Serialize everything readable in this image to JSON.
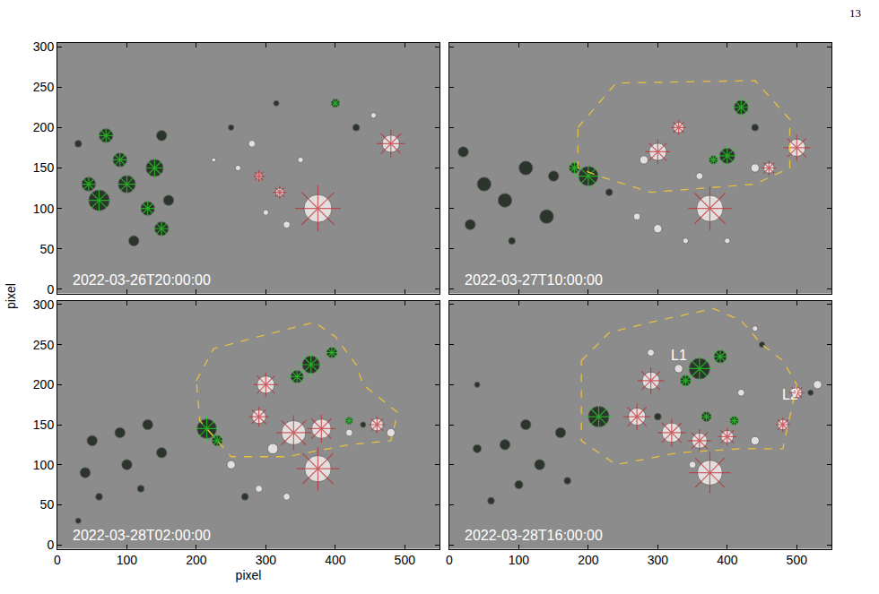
{
  "page_number": "13",
  "ylabel": "pixel",
  "chart_data": [
    {
      "type": "scatter",
      "title": "2022-03-26T20:00:00",
      "xlim": [
        0,
        550
      ],
      "ylim": [
        -5,
        305
      ],
      "xticks": [
        0,
        100,
        200,
        300,
        400,
        500
      ],
      "yticks": [
        0,
        50,
        100,
        150,
        200,
        250,
        300
      ],
      "grid": false,
      "tick_labels": "y",
      "series": [
        {
          "type": "scatter",
          "marker": "circle",
          "color": "#1c261c",
          "x": [
            70,
            60,
            100,
            140,
            150,
            130,
            150,
            110,
            45,
            90,
            160,
            30,
            400,
            430,
            250,
            315
          ],
          "y": [
            190,
            110,
            130,
            150,
            190,
            100,
            75,
            60,
            130,
            160,
            110,
            180,
            230,
            200,
            200,
            230
          ],
          "size": [
            20,
            30,
            25,
            25,
            15,
            20,
            20,
            15,
            20,
            20,
            15,
            10,
            12,
            10,
            8,
            8
          ]
        },
        {
          "type": "scatter",
          "marker": "asterisk",
          "color": "#22dd22",
          "x": [
            70,
            60,
            100,
            140,
            130,
            150,
            45,
            90,
            400
          ],
          "y": [
            190,
            110,
            130,
            150,
            100,
            75,
            130,
            160,
            230
          ],
          "size": [
            18,
            26,
            22,
            22,
            18,
            18,
            16,
            18,
            10
          ]
        },
        {
          "type": "scatter",
          "marker": "circle",
          "color": "#f4eeee",
          "x": [
            375,
            480,
            290,
            320,
            330,
            280,
            260,
            350,
            455,
            225,
            300
          ],
          "y": [
            100,
            180,
            140,
            120,
            80,
            180,
            150,
            160,
            215,
            160,
            95
          ],
          "size": [
            40,
            25,
            10,
            12,
            10,
            10,
            8,
            8,
            8,
            6,
            8
          ]
        },
        {
          "type": "scatter",
          "marker": "asterisk",
          "color": "#c0282e",
          "x": [
            375,
            480,
            290,
            320
          ],
          "y": [
            100,
            180,
            140,
            120
          ],
          "size": [
            55,
            34,
            14,
            16
          ]
        }
      ]
    },
    {
      "type": "scatter",
      "title": "2022-03-27T10:00:00",
      "xlim": [
        0,
        550
      ],
      "ylim": [
        -5,
        305
      ],
      "xticks": [
        0,
        100,
        200,
        300,
        400,
        500
      ],
      "yticks": [
        0,
        50,
        100,
        150,
        200,
        250,
        300
      ],
      "grid": false,
      "tick_labels": false,
      "series": [
        {
          "type": "scatter",
          "marker": "circle",
          "color": "#1c261c",
          "x": [
            50,
            80,
            110,
            150,
            140,
            30,
            20,
            90,
            200,
            180,
            420,
            400,
            380,
            440,
            230
          ],
          "y": [
            130,
            110,
            150,
            140,
            90,
            80,
            170,
            60,
            140,
            150,
            225,
            165,
            160,
            200,
            120
          ],
          "size": [
            20,
            20,
            20,
            15,
            20,
            15,
            15,
            10,
            28,
            15,
            20,
            22,
            12,
            10,
            10
          ]
        },
        {
          "type": "scatter",
          "marker": "asterisk",
          "color": "#22dd22",
          "x": [
            200,
            180,
            420,
            400,
            380
          ],
          "y": [
            140,
            150,
            225,
            165,
            160
          ],
          "size": [
            30,
            16,
            22,
            24,
            12
          ]
        },
        {
          "type": "scatter",
          "marker": "circle",
          "color": "#f4eeee",
          "x": [
            375,
            500,
            300,
            330,
            280,
            460,
            440,
            360,
            300,
            270,
            400,
            340
          ],
          "y": [
            100,
            175,
            170,
            200,
            160,
            150,
            150,
            140,
            75,
            90,
            60,
            60
          ],
          "size": [
            38,
            25,
            25,
            15,
            12,
            15,
            12,
            10,
            12,
            10,
            8,
            8
          ]
        },
        {
          "type": "scatter",
          "marker": "asterisk",
          "color": "#c0282e",
          "x": [
            375,
            500,
            300,
            330,
            460
          ],
          "y": [
            100,
            175,
            170,
            200,
            150
          ],
          "size": [
            52,
            32,
            30,
            18,
            18
          ]
        },
        {
          "type": "line",
          "line_style": "dash",
          "color": "#e8c040",
          "x": [
            185,
            240,
            440,
            490,
            490,
            440,
            290,
            215,
            185,
            185
          ],
          "y": [
            200,
            255,
            258,
            210,
            150,
            130,
            120,
            140,
            150,
            200
          ]
        }
      ]
    },
    {
      "type": "scatter",
      "title": "2022-03-28T02:00:00",
      "xlim": [
        0,
        550
      ],
      "ylim": [
        -5,
        305
      ],
      "xticks": [
        0,
        100,
        200,
        300,
        400,
        500
      ],
      "yticks": [
        0,
        50,
        100,
        150,
        200,
        250,
        300
      ],
      "xlabel": "pixel",
      "grid": false,
      "tick_labels": true,
      "series": [
        {
          "type": "scatter",
          "marker": "circle",
          "color": "#1c261c",
          "x": [
            40,
            50,
            90,
            130,
            150,
            100,
            60,
            30,
            120,
            270,
            215,
            230,
            365,
            345,
            395,
            420,
            440
          ],
          "y": [
            90,
            130,
            140,
            150,
            115,
            100,
            60,
            30,
            70,
            60,
            145,
            130,
            225,
            210,
            240,
            155,
            150
          ],
          "size": [
            15,
            15,
            15,
            15,
            15,
            15,
            10,
            8,
            10,
            10,
            28,
            15,
            25,
            18,
            15,
            10,
            8
          ]
        },
        {
          "type": "scatter",
          "marker": "asterisk",
          "color": "#22dd22",
          "x": [
            215,
            230,
            365,
            345,
            395,
            420
          ],
          "y": [
            145,
            130,
            225,
            210,
            240,
            155
          ],
          "size": [
            30,
            16,
            28,
            20,
            16,
            10
          ]
        },
        {
          "type": "scatter",
          "marker": "circle",
          "color": "#f4eeee",
          "x": [
            375,
            340,
            380,
            300,
            290,
            310,
            460,
            480,
            250,
            330,
            290,
            420
          ],
          "y": [
            95,
            140,
            145,
            200,
            160,
            120,
            150,
            140,
            100,
            60,
            70,
            140
          ],
          "size": [
            38,
            35,
            28,
            25,
            20,
            15,
            18,
            12,
            12,
            10,
            10,
            10
          ]
        },
        {
          "type": "scatter",
          "marker": "asterisk",
          "color": "#c0282e",
          "x": [
            375,
            340,
            380,
            300,
            290,
            460
          ],
          "y": [
            95,
            140,
            145,
            200,
            160,
            150
          ],
          "size": [
            52,
            42,
            34,
            30,
            24,
            20
          ]
        },
        {
          "type": "line",
          "line_style": "dash",
          "color": "#e8c040",
          "x": [
            200,
            225,
            290,
            370,
            400,
            430,
            440,
            490,
            480,
            420,
            330,
            250,
            205,
            200
          ],
          "y": [
            205,
            245,
            260,
            278,
            260,
            225,
            200,
            165,
            130,
            125,
            110,
            110,
            155,
            205
          ]
        }
      ]
    },
    {
      "type": "scatter",
      "title": "2022-03-28T16:00:00",
      "xlim": [
        0,
        550
      ],
      "ylim": [
        -5,
        305
      ],
      "xticks": [
        0,
        100,
        200,
        300,
        400,
        500
      ],
      "yticks": [
        0,
        50,
        100,
        150,
        200,
        250,
        300
      ],
      "grid": false,
      "tick_labels": "x",
      "annotations": [
        {
          "text": "L1",
          "x": 330,
          "y": 237
        },
        {
          "text": "L2",
          "x": 490,
          "y": 188
        }
      ],
      "series": [
        {
          "type": "scatter",
          "marker": "circle",
          "color": "#1c261c",
          "x": [
            40,
            80,
            110,
            130,
            160,
            100,
            60,
            170,
            40,
            450,
            215,
            360,
            390,
            340,
            370,
            410,
            300,
            520
          ],
          "y": [
            120,
            125,
            150,
            100,
            140,
            75,
            55,
            80,
            200,
            250,
            160,
            220,
            235,
            205,
            160,
            155,
            160,
            190
          ],
          "size": [
            12,
            15,
            15,
            15,
            15,
            12,
            10,
            10,
            8,
            8,
            30,
            30,
            18,
            15,
            14,
            12,
            10,
            8
          ]
        },
        {
          "type": "scatter",
          "marker": "asterisk",
          "color": "#22dd22",
          "x": [
            215,
            360,
            390,
            340,
            370,
            410
          ],
          "y": [
            160,
            220,
            235,
            205,
            160,
            155
          ],
          "size": [
            32,
            32,
            20,
            16,
            14,
            12
          ]
        },
        {
          "type": "scatter",
          "marker": "circle",
          "color": "#f4eeee",
          "x": [
            375,
            290,
            270,
            320,
            360,
            400,
            440,
            480,
            500,
            530,
            330,
            290,
            420,
            350,
            440
          ],
          "y": [
            90,
            205,
            160,
            140,
            130,
            135,
            130,
            150,
            190,
            200,
            220,
            240,
            190,
            100,
            270
          ],
          "size": [
            36,
            25,
            25,
            28,
            22,
            18,
            12,
            15,
            15,
            12,
            12,
            10,
            10,
            10,
            8
          ]
        },
        {
          "type": "scatter",
          "marker": "asterisk",
          "color": "#c0282e",
          "x": [
            375,
            290,
            270,
            320,
            360,
            400,
            480,
            500
          ],
          "y": [
            90,
            205,
            160,
            140,
            130,
            135,
            150,
            190
          ],
          "size": [
            50,
            32,
            32,
            34,
            28,
            22,
            18,
            18
          ]
        },
        {
          "type": "line",
          "line_style": "dash",
          "color": "#e8c040",
          "x": [
            190,
            230,
            300,
            380,
            420,
            450,
            480,
            500,
            480,
            420,
            330,
            240,
            190,
            190
          ],
          "y": [
            230,
            265,
            280,
            295,
            280,
            250,
            230,
            200,
            120,
            120,
            115,
            100,
            130,
            230
          ]
        }
      ]
    }
  ]
}
